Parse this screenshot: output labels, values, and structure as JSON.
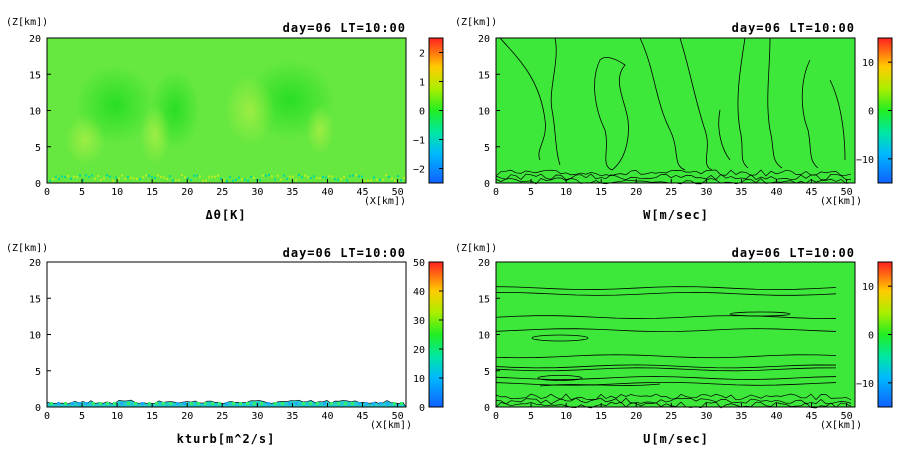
{
  "chart_data": [
    {
      "type": "heatmap",
      "title": "day=06 LT=10:00",
      "xlabel": "(X[km])",
      "ylabel": "(Z[km])",
      "variable": "Δθ[K]",
      "xlim": [
        0,
        51.2
      ],
      "ylim": [
        0,
        20
      ],
      "x_ticks": [
        0,
        5,
        10,
        15,
        20,
        25,
        30,
        35,
        40,
        45,
        50
      ],
      "y_ticks": [
        0,
        5,
        10,
        15,
        20
      ],
      "colorbar": {
        "range": [
          -2.5,
          2.5
        ],
        "ticks": [
          -2,
          -1,
          0,
          1,
          2
        ],
        "tick_labels": [
          "−2",
          "−1",
          "0",
          "1",
          "2"
        ]
      },
      "description_values": {
        "field_level": 0.15,
        "near_surface_noise": true
      },
      "contours": false
    },
    {
      "type": "heatmap",
      "title": "day=06 LT=10:00",
      "xlabel": "(X[km])",
      "ylabel": "(Z[km])",
      "variable": "W[m/sec]",
      "xlim": [
        0,
        51.2
      ],
      "ylim": [
        0,
        20
      ],
      "x_ticks": [
        0,
        5,
        10,
        15,
        20,
        25,
        30,
        35,
        40,
        45,
        50
      ],
      "y_ticks": [
        0,
        5,
        10,
        15,
        20
      ],
      "colorbar": {
        "range": [
          -15,
          15
        ],
        "ticks": [
          -10,
          0,
          10
        ],
        "tick_labels": [
          "−10",
          "0",
          "10"
        ]
      },
      "contours": true
    },
    {
      "type": "heatmap",
      "title": "day=06 LT=10:00",
      "xlabel": "(X[km])",
      "ylabel": "(Z[km])",
      "variable": "kturb[m^2/s]",
      "xlim": [
        0,
        51.2
      ],
      "ylim": [
        0,
        20
      ],
      "x_ticks": [
        0,
        5,
        10,
        15,
        20,
        25,
        30,
        35,
        40,
        45,
        50
      ],
      "y_ticks": [
        0,
        5,
        10,
        15,
        20
      ],
      "colorbar": {
        "range": [
          0,
          50
        ],
        "ticks": [
          0,
          10,
          20,
          30,
          40,
          50
        ],
        "tick_labels": [
          "0",
          "10",
          "20",
          "30",
          "40",
          "50"
        ]
      },
      "boundary_layer_top_km": 0.8,
      "contours": false
    },
    {
      "type": "heatmap",
      "title": "day=06 LT=10:00",
      "xlabel": "(X[km])",
      "ylabel": "(Z[km])",
      "variable": "U[m/sec]",
      "xlim": [
        0,
        51.2
      ],
      "ylim": [
        0,
        20
      ],
      "x_ticks": [
        0,
        5,
        10,
        15,
        20,
        25,
        30,
        35,
        40,
        45,
        50
      ],
      "y_ticks": [
        0,
        5,
        10,
        15,
        20
      ],
      "colorbar": {
        "range": [
          -15,
          15
        ],
        "ticks": [
          -10,
          0,
          10
        ],
        "tick_labels": [
          "−10",
          "0",
          "10"
        ]
      },
      "contour_levels_z_km": [
        3.2,
        4.0,
        5.2,
        5.6,
        7.0,
        10.6,
        12.4,
        15.6,
        16.4
      ],
      "contours": true
    }
  ]
}
